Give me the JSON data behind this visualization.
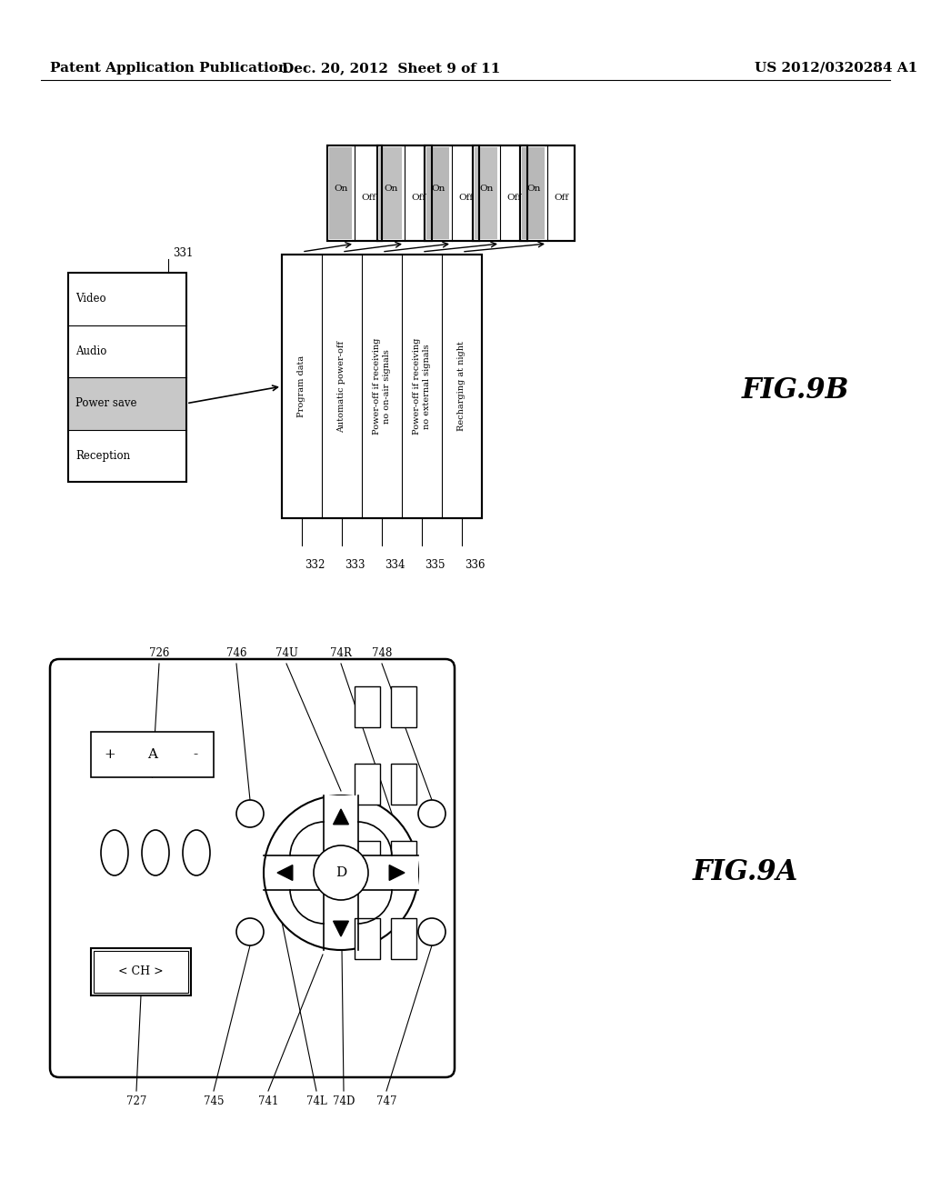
{
  "header_left": "Patent Application Publication",
  "header_mid": "Dec. 20, 2012  Sheet 9 of 11",
  "header_right": "US 2012/0320284 A1",
  "fig_a_label": "FIG.9A",
  "fig_b_label": "FIG.9B",
  "bg_color": "#ffffff",
  "menu_rows": [
    "Video",
    "Audio",
    "Power save",
    "Reception"
  ],
  "settings_rows": [
    "Program data",
    "Automatic power-off",
    "Power-off if receiving\nno on-air signals",
    "Power-off if receiving\nno external signals",
    "Recharging at night"
  ],
  "settings_labels": [
    "332",
    "333",
    "334",
    "335",
    "336"
  ],
  "toggle_on_shades": [
    "#b8b8b8",
    "#c0c0c0",
    "#b8b8b8",
    "#c0c0c0",
    "#b8b8b8"
  ]
}
